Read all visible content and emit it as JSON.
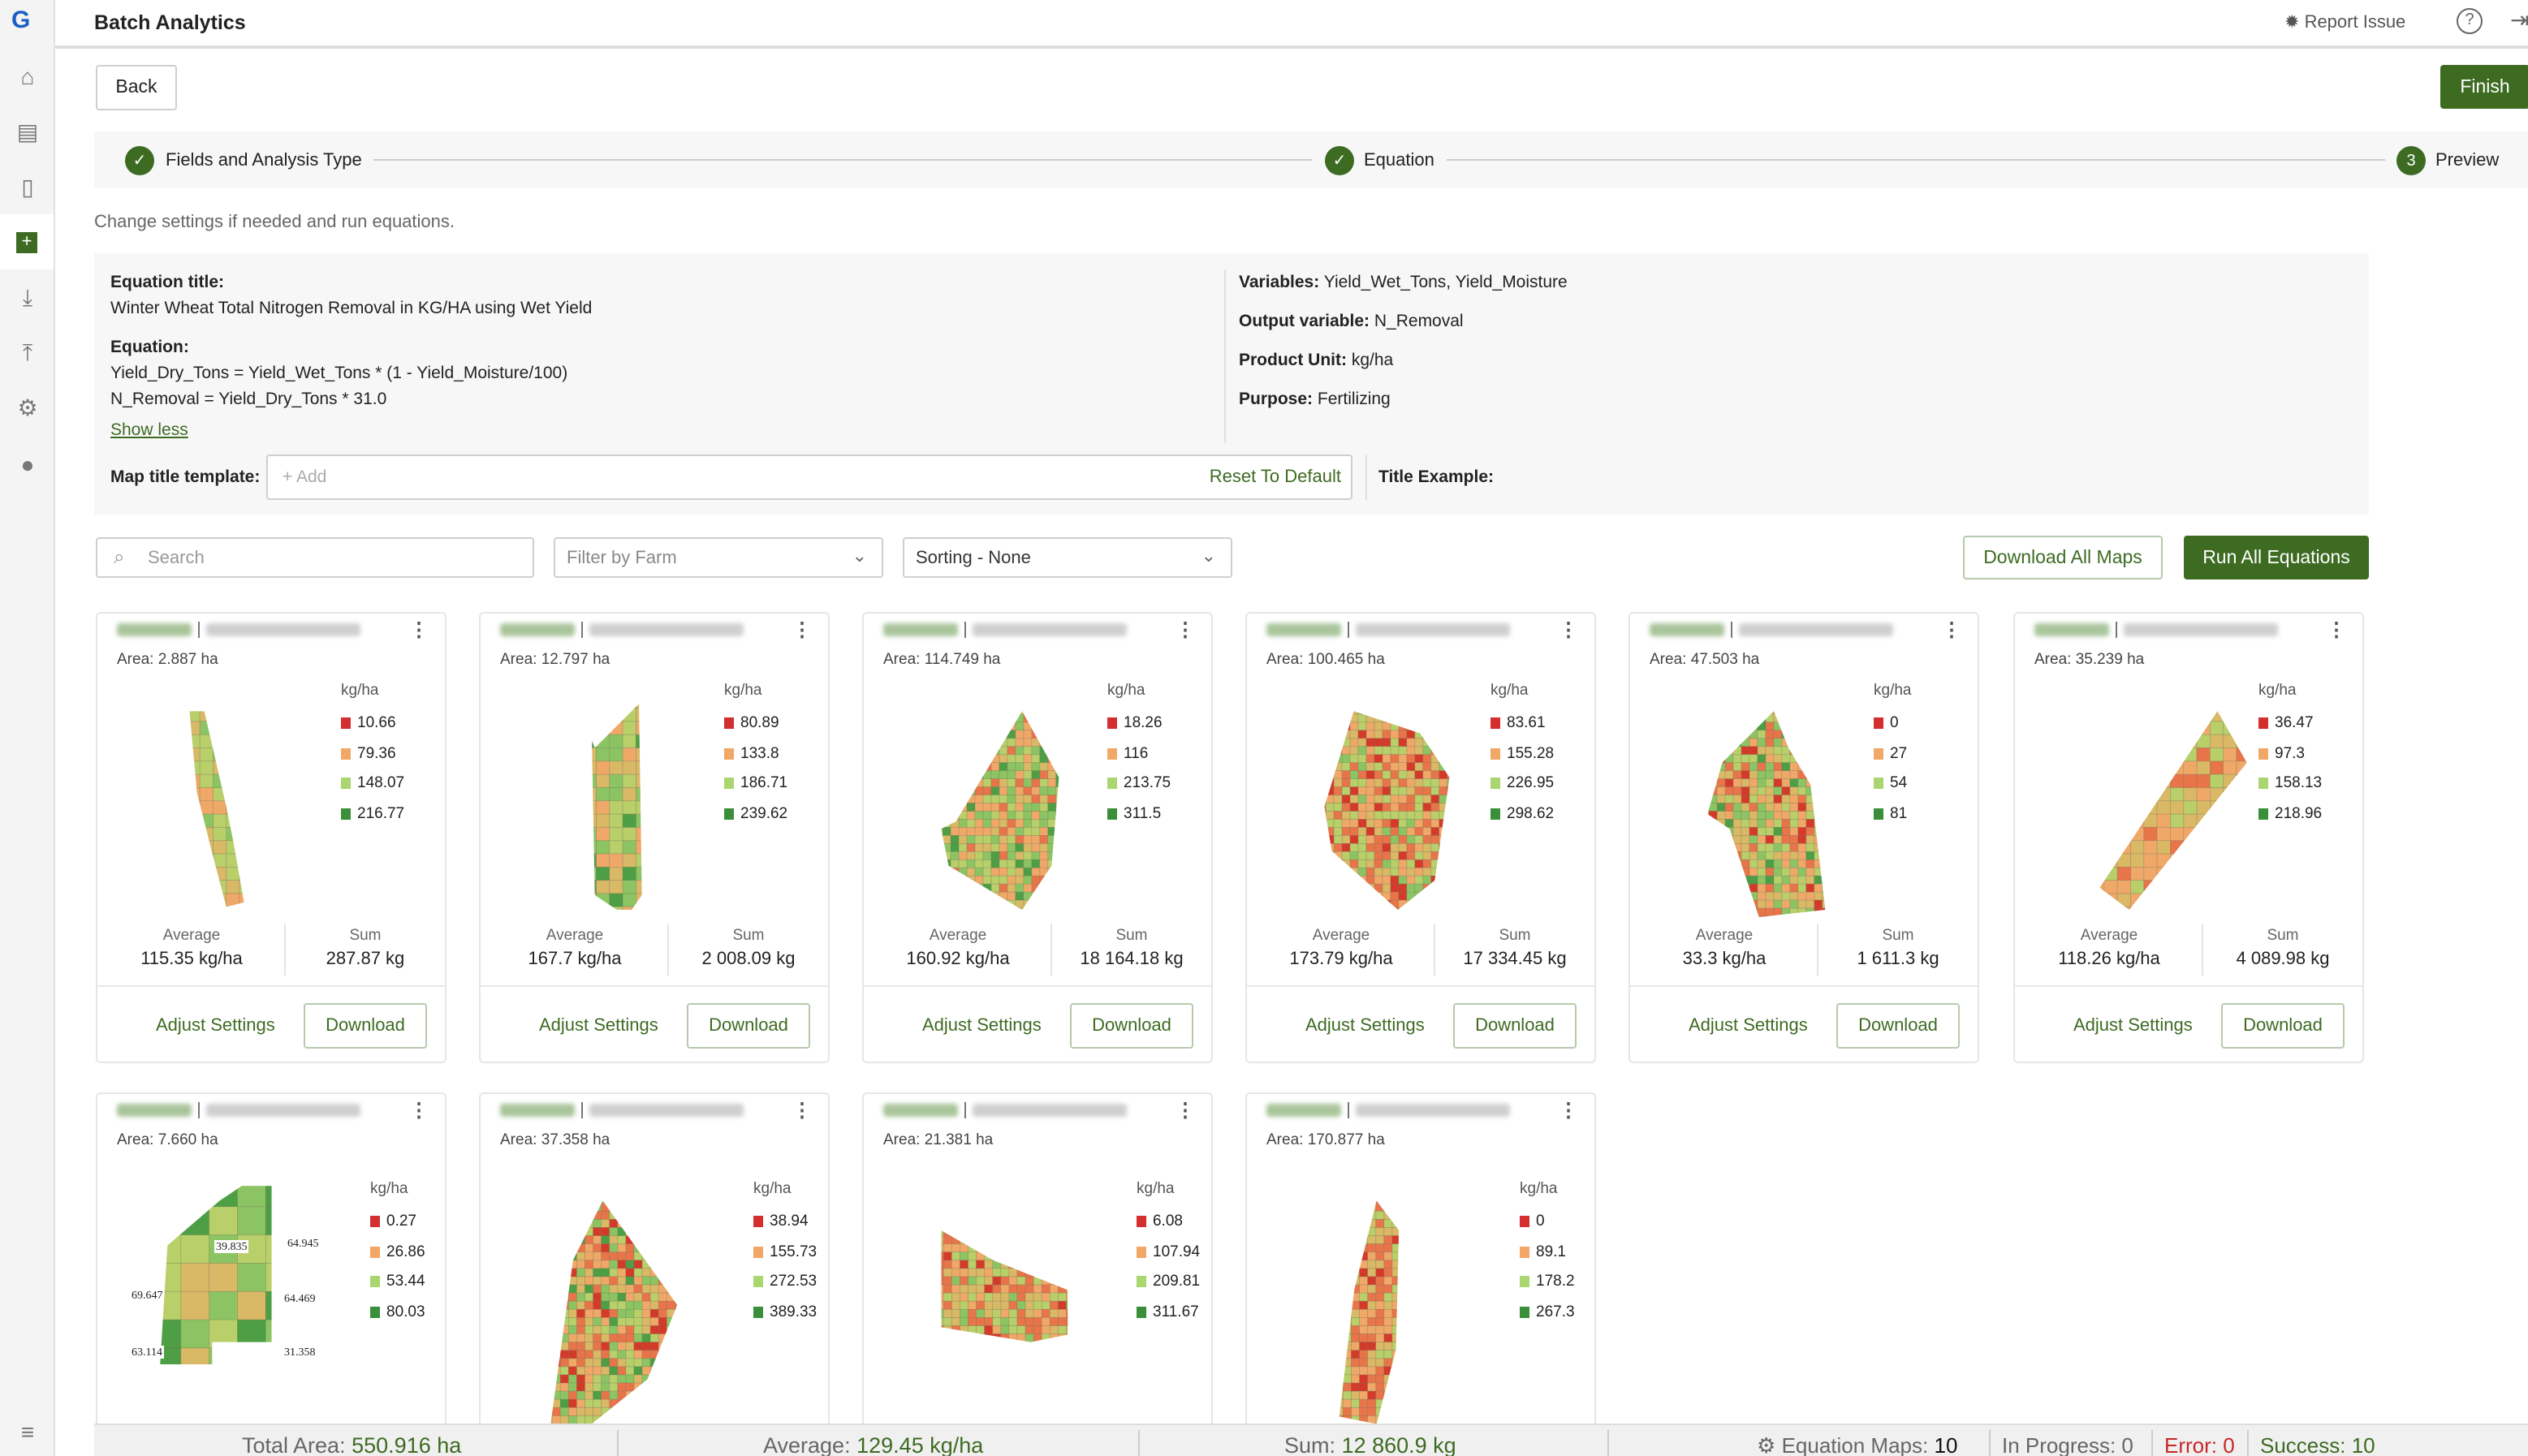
{
  "app": {
    "title": "Batch Analytics",
    "report_issue": "Report Issue"
  },
  "sidebar": {
    "items": [
      "home-icon",
      "clipboard-icon",
      "map-icon",
      "add-analytics-icon",
      "download-icon",
      "upload-icon",
      "settings-circle-icon",
      "user-icon",
      "menu-icon"
    ],
    "active": "add-analytics-icon"
  },
  "toolbar": {
    "back": "Back",
    "finish": "Finish"
  },
  "stepper": {
    "steps": [
      {
        "label": "Fields and Analysis Type",
        "status": "done"
      },
      {
        "label": "Equation",
        "status": "done"
      },
      {
        "label": "Preview",
        "number": "3",
        "status": "current"
      }
    ]
  },
  "instruction": "Change settings if needed and run equations.",
  "equation": {
    "title_label": "Equation title:",
    "title": "Winter Wheat Total Nitrogen Removal in KG/HA using Wet Yield",
    "equation_label": "Equation:",
    "lines": [
      "Yield_Dry_Tons = Yield_Wet_Tons * (1 - Yield_Moisture/100)",
      "N_Removal = Yield_Dry_Tons * 31.0"
    ],
    "show_less": "Show less",
    "variables_label": "Variables:",
    "variables": "Yield_Wet_Tons, Yield_Moisture",
    "output_label": "Output variable:",
    "output": "N_Removal",
    "unit_label": "Product Unit:",
    "unit": "kg/ha",
    "purpose_label": "Purpose:",
    "purpose": "Fertilizing",
    "map_title_label": "Map title template:",
    "map_title_placeholder": "+ Add",
    "reset": "Reset To Default",
    "title_example_label": "Title Example:"
  },
  "filters": {
    "search_placeholder": "Search",
    "farm": "Filter by Farm",
    "sorting": "Sorting - None",
    "download_all": "Download All Maps",
    "run_all": "Run All Equations"
  },
  "card_labels": {
    "average": "Average",
    "sum": "Sum",
    "adjust": "Adjust Settings",
    "download": "Download",
    "unit": "kg/ha"
  },
  "legend_colors": [
    "#d32f2f",
    "#f2a766",
    "#a9d66f",
    "#3b8f3b"
  ],
  "cards": [
    {
      "area": "Area: 2.887 ha",
      "legend": [
        "10.66",
        "79.36",
        "148.07",
        "216.77"
      ],
      "average": "115.35 kg/ha",
      "sum": "287.87 kg"
    },
    {
      "area": "Area: 12.797 ha",
      "legend": [
        "80.89",
        "133.8",
        "186.71",
        "239.62"
      ],
      "average": "167.7 kg/ha",
      "sum": "2 008.09 kg"
    },
    {
      "area": "Area: 114.749 ha",
      "legend": [
        "18.26",
        "116",
        "213.75",
        "311.5"
      ],
      "average": "160.92 kg/ha",
      "sum": "18 164.18 kg"
    },
    {
      "area": "Area: 100.465 ha",
      "legend": [
        "83.61",
        "155.28",
        "226.95",
        "298.62"
      ],
      "average": "173.79 kg/ha",
      "sum": "17 334.45 kg"
    },
    {
      "area": "Area: 47.503 ha",
      "legend": [
        "0",
        "27",
        "54",
        "81"
      ],
      "average": "33.3 kg/ha",
      "sum": "1 611.3 kg"
    },
    {
      "area": "Area: 35.239 ha",
      "legend": [
        "36.47",
        "97.3",
        "158.13",
        "218.96"
      ],
      "average": "118.26 kg/ha",
      "sum": "4 089.98 kg"
    },
    {
      "area": "Area: 7.660 ha",
      "legend": [
        "0.27",
        "26.86",
        "53.44",
        "80.03"
      ],
      "zone_labels": [
        "39.835",
        "64.945",
        "69.647",
        "64.469",
        "63.114",
        "31.358"
      ]
    },
    {
      "area": "Area: 37.358 ha",
      "legend": [
        "38.94",
        "155.73",
        "272.53",
        "389.33"
      ]
    },
    {
      "area": "Area: 21.381 ha",
      "legend": [
        "6.08",
        "107.94",
        "209.81",
        "311.67"
      ]
    },
    {
      "area": "Area: 170.877 ha",
      "legend": [
        "0",
        "89.1",
        "178.2",
        "267.3"
      ]
    }
  ],
  "summary": {
    "total_area_label": "Total Area:",
    "total_area": "550.916 ha",
    "average_label": "Average:",
    "average": "129.45 kg/ha",
    "sum_label": "Sum:",
    "sum": "12 860.9 kg",
    "maps_label": "Equation Maps:",
    "maps": "10",
    "progress_label": "In Progress: 0",
    "error_label": "Error: 0",
    "success_label": "Success: 10"
  }
}
